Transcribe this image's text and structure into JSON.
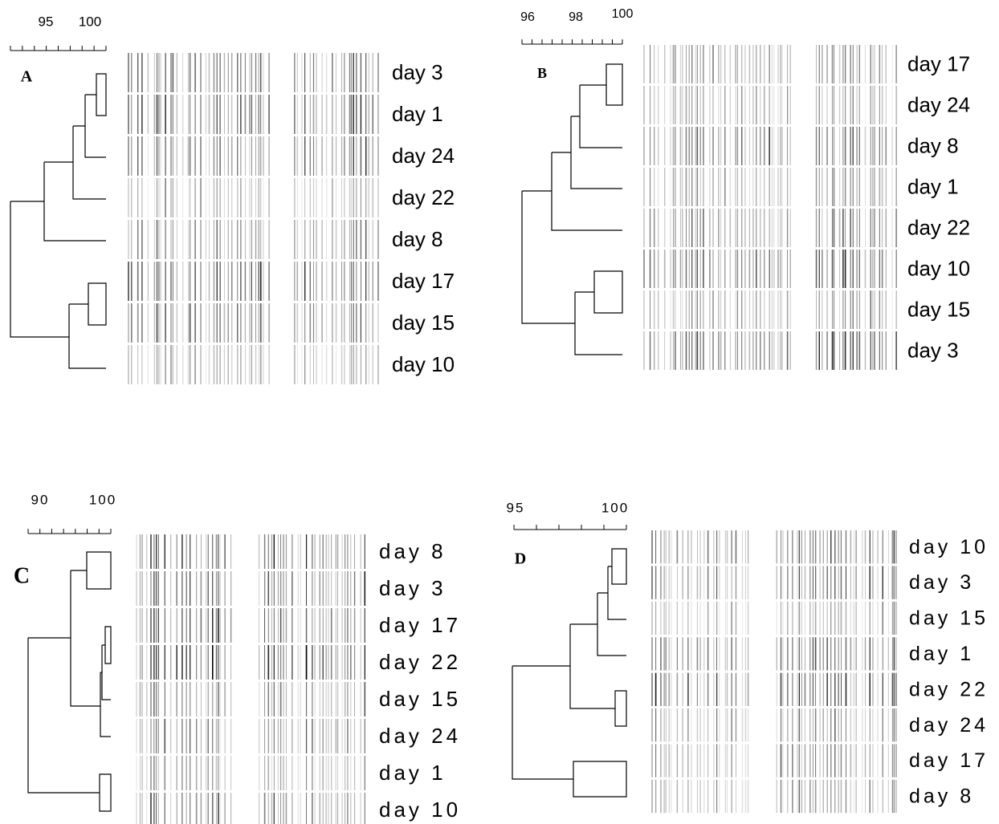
{
  "panels": [
    {
      "label": "A",
      "scale_ticks": [
        "95",
        "100"
      ],
      "lanes": [
        "day 3",
        "day 1",
        "day 24",
        "day 22",
        "day 8",
        "day 17",
        "day 15",
        "day 10"
      ]
    },
    {
      "label": "B",
      "scale_ticks": [
        "96",
        "98",
        "100"
      ],
      "lanes": [
        "day 17",
        "day 24",
        "day 8",
        "day 1",
        "day 22",
        "day 10",
        "day 15",
        "day 3"
      ]
    },
    {
      "label": "C",
      "scale_ticks": [
        "90",
        "100"
      ],
      "lanes": [
        "day 8",
        "day 3",
        "day 17",
        "day 22",
        "day 15",
        "day 24",
        "day 1",
        "day 10"
      ]
    },
    {
      "label": "D",
      "scale_ticks": [
        "95",
        "100"
      ],
      "lanes": [
        "day 10",
        "day 3",
        "day 15",
        "day 1",
        "day 22",
        "day 24",
        "day 17",
        "day 8"
      ]
    }
  ]
}
